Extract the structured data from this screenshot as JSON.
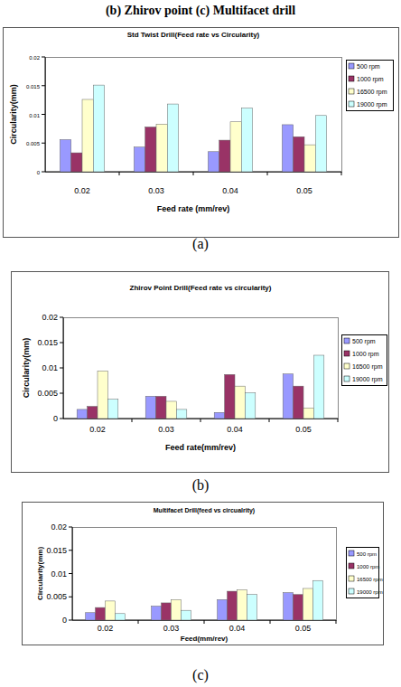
{
  "heading": "(b) Zhirov point (c) Multifacet drill",
  "captions": [
    "(a)",
    "(b)",
    "(c)"
  ],
  "chart_data": [
    {
      "type": "bar",
      "title": "Std Twist Drill(Feed rate vs Circularity)",
      "x_label": "Feed rate (mm/rev)",
      "y_label": "Circularity(mm)",
      "categories": [
        "0.02",
        "0.03",
        "0.04",
        "0.05"
      ],
      "series": [
        {
          "name": "500 rpm",
          "color": "#9999ff",
          "values": [
            0.0056,
            0.0043,
            0.0035,
            0.0082
          ]
        },
        {
          "name": "1000 rpm",
          "color": "#993366",
          "values": [
            0.0033,
            0.0078,
            0.0055,
            0.0061
          ]
        },
        {
          "name": "16500 rpm",
          "color": "#ffffcc",
          "values": [
            0.0126,
            0.0083,
            0.0087,
            0.0047
          ]
        },
        {
          "name": "19000 rpm",
          "color": "#ccffff",
          "values": [
            0.0151,
            0.0118,
            0.0111,
            0.0098
          ]
        }
      ],
      "ylim": [
        0,
        0.02
      ],
      "yticks": [
        0,
        0.005,
        0.01,
        0.015,
        0.02
      ],
      "grid": false,
      "legend": "right"
    },
    {
      "type": "bar",
      "title": "Zhirov Point Drill(Feed rate vs circularity)",
      "x_label": "Feed rate(mm/rev)",
      "y_label": "Circularity(mm)",
      "categories": [
        "0.02",
        "0.03",
        "0.04",
        "0.05"
      ],
      "series": [
        {
          "name": "500 rpm",
          "color": "#9999ff",
          "values": [
            0.0018,
            0.0044,
            0.0012,
            0.0088
          ]
        },
        {
          "name": "1000 rpm",
          "color": "#993366",
          "values": [
            0.0024,
            0.0044,
            0.0087,
            0.0064
          ]
        },
        {
          "name": "16500 rpm",
          "color": "#ffffcc",
          "values": [
            0.0094,
            0.0034,
            0.0064,
            0.0021
          ]
        },
        {
          "name": "19000 rpm",
          "color": "#ccffff",
          "values": [
            0.0038,
            0.0018,
            0.0051,
            0.0125
          ]
        }
      ],
      "ylim": [
        0,
        0.02
      ],
      "yticks": [
        0,
        0.005,
        0.01,
        0.015,
        0.02
      ],
      "grid": false,
      "legend": "right"
    },
    {
      "type": "bar",
      "title": "Multifacet Drill(feed vs circualrity)",
      "x_label": "Feed(mm/rev)",
      "y_label": "Circularity(mm)",
      "categories": [
        "0.02",
        "0.03",
        "0.04",
        "0.05"
      ],
      "series": [
        {
          "name": "500 rpm",
          "color": "#9999ff",
          "values": [
            0.0016,
            0.003,
            0.0044,
            0.0059
          ]
        },
        {
          "name": "1000 rpm",
          "color": "#993366",
          "values": [
            0.0027,
            0.0037,
            0.0062,
            0.0055
          ]
        },
        {
          "name": "16500 rpm",
          "color": "#ffffcc",
          "values": [
            0.0041,
            0.0044,
            0.0065,
            0.0068
          ]
        },
        {
          "name": "19000 rpm",
          "color": "#ccffff",
          "values": [
            0.0014,
            0.0021,
            0.0055,
            0.0085
          ]
        }
      ],
      "ylim": [
        0,
        0.02
      ],
      "yticks": [
        0,
        0.005,
        0.01,
        0.015,
        0.02
      ],
      "grid": false,
      "legend": "right"
    }
  ]
}
